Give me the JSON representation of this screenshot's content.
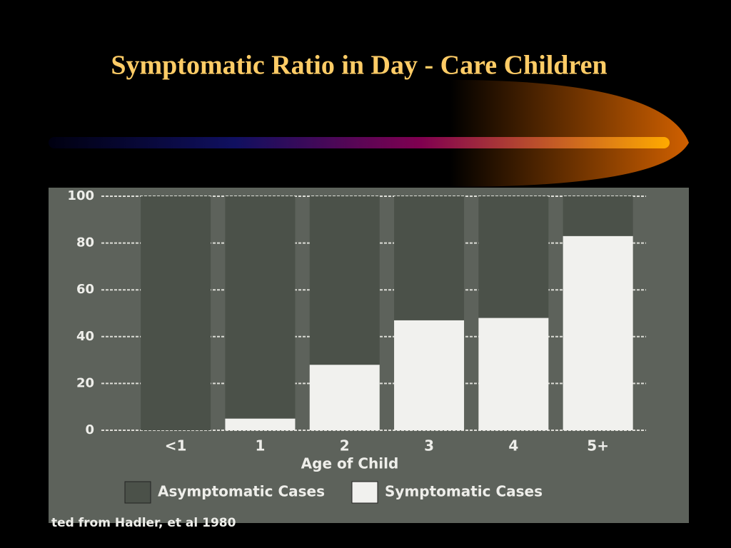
{
  "chart_data": {
    "type": "stacked_bar",
    "title": "Symptomatic Ratio in Day - Care Children",
    "x_label": "Age of Child",
    "categories": [
      "<1",
      "1",
      "2",
      "3",
      "4",
      "5+"
    ],
    "series": [
      {
        "name": "Asymptomatic Cases",
        "color": "#4b5149",
        "values": [
          100,
          95,
          72,
          53,
          52,
          17
        ]
      },
      {
        "name": "Symptomatic Cases",
        "color": "#f1f1ee",
        "values": [
          0,
          5,
          28,
          47,
          48,
          83
        ]
      }
    ],
    "ylim": [
      0,
      100
    ],
    "yticks": [
      0,
      20,
      40,
      60,
      80,
      100
    ],
    "grid": true,
    "source": "ted from Hadler, et al 1980"
  }
}
